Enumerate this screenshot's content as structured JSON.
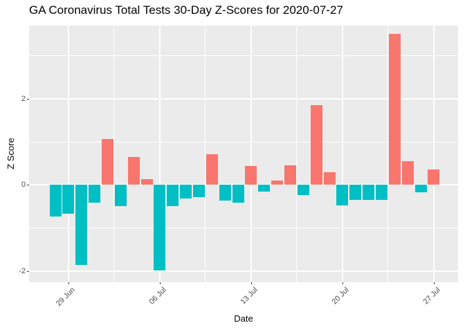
{
  "chart_data": {
    "type": "bar",
    "title": "GA Coronavirus Total Tests 30-Day Z-Scores for 2020-07-27",
    "xlabel": "Date",
    "ylabel": "Z Score",
    "x": [
      "2020-06-28",
      "2020-06-29",
      "2020-06-30",
      "2020-07-01",
      "2020-07-02",
      "2020-07-03",
      "2020-07-04",
      "2020-07-05",
      "2020-07-06",
      "2020-07-07",
      "2020-07-08",
      "2020-07-09",
      "2020-07-10",
      "2020-07-11",
      "2020-07-12",
      "2020-07-13",
      "2020-07-14",
      "2020-07-15",
      "2020-07-16",
      "2020-07-17",
      "2020-07-18",
      "2020-07-19",
      "2020-07-20",
      "2020-07-21",
      "2020-07-22",
      "2020-07-23",
      "2020-07-24",
      "2020-07-25",
      "2020-07-26",
      "2020-07-27"
    ],
    "values": [
      -0.74,
      -0.67,
      -1.86,
      -0.41,
      1.06,
      -0.49,
      0.64,
      0.13,
      -1.98,
      -0.5,
      -0.32,
      -0.29,
      0.71,
      -0.37,
      -0.42,
      0.44,
      -0.15,
      0.1,
      0.45,
      -0.23,
      1.85,
      0.3,
      -0.48,
      -0.35,
      -0.35,
      -0.35,
      3.5,
      0.55,
      -0.17,
      0.35
    ],
    "x_tick_labels": [
      "29 Jun",
      "06 Jul",
      "13 Jul",
      "20 Jul",
      "27 Jul"
    ],
    "x_tick_day_index": [
      1,
      8,
      15,
      22,
      29
    ],
    "x_minor_day_index": [
      4.5,
      11.5,
      18.5,
      25.5
    ],
    "y_tick_labels": [
      "-2",
      "0",
      "2"
    ],
    "y_tick_values": [
      -2,
      0,
      2
    ],
    "y_minor_values": [
      -1,
      1,
      3
    ],
    "ylim": [
      -2.3,
      3.7
    ],
    "grid": true,
    "legend": "none",
    "colors": {
      "positive": "#F8766D",
      "negative": "#00BFC4",
      "panel_background": "#EBEBEB",
      "gridline": "#FFFFFF",
      "tick_text": "#4D4D4D",
      "title_text": "#000000"
    }
  }
}
